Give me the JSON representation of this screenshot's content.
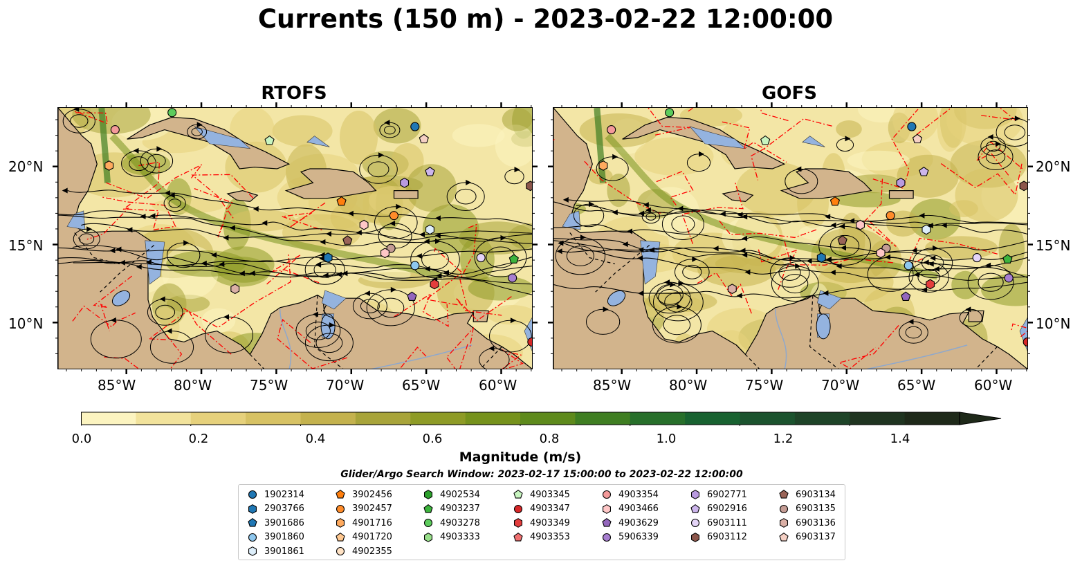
{
  "title": "Currents (150 m) - 2023-02-22 12:00:00",
  "panels": [
    {
      "title": "RTOFS"
    },
    {
      "title": "GOFS"
    }
  ],
  "lon_ticks": [
    "85°W",
    "80°W",
    "75°W",
    "70°W",
    "65°W",
    "60°W"
  ],
  "lat_ticks": [
    "20°N",
    "15°N",
    "10°N"
  ],
  "colorbar": {
    "label": "Magnitude (m/s)",
    "ticks": [
      "0.0",
      "0.2",
      "0.4",
      "0.6",
      "0.8",
      "1.0",
      "1.2",
      "1.4"
    ],
    "range": [
      0,
      1.6
    ],
    "extend": "max",
    "colors": [
      "#fcf4c0",
      "#f2e39c",
      "#e6d17c",
      "#d7c264",
      "#c4b24e",
      "#a8a43a",
      "#8e9b26",
      "#76921c",
      "#5e8a1c",
      "#3f7e22",
      "#276f2a",
      "#186230",
      "#1b532e",
      "#1e4428",
      "#1f3420",
      "#1e2919"
    ]
  },
  "search_window": "Glider/Argo Search Window: 2023-02-17 15:00:00 to 2023-02-22 12:00:00",
  "legend": [
    [
      {
        "label": "1902314",
        "marker": "circle",
        "color": "#1f77b4"
      },
      {
        "label": "2903766",
        "marker": "hexagon",
        "color": "#1f77b4"
      },
      {
        "label": "3901686",
        "marker": "pentagon",
        "color": "#1f77b4"
      },
      {
        "label": "3901860",
        "marker": "circle",
        "color": "#8ec7ee"
      },
      {
        "label": "3901861",
        "marker": "hexagon",
        "color": "#ddeefa"
      }
    ],
    [
      {
        "label": "3902456",
        "marker": "pentagon",
        "color": "#ff7f0e"
      },
      {
        "label": "3902457",
        "marker": "circle",
        "color": "#ff8c2a"
      },
      {
        "label": "4901716",
        "marker": "hexagon",
        "color": "#ffaa5e"
      },
      {
        "label": "4901720",
        "marker": "pentagon",
        "color": "#ffc890"
      },
      {
        "label": "4902355",
        "marker": "circle",
        "color": "#ffe2c4"
      }
    ],
    [
      {
        "label": "4902534",
        "marker": "hexagon",
        "color": "#2ca02c"
      },
      {
        "label": "4903237",
        "marker": "pentagon",
        "color": "#3db43d"
      },
      {
        "label": "4903278",
        "marker": "circle",
        "color": "#5ccc5c"
      },
      {
        "label": "4903333",
        "marker": "hexagon",
        "color": "#98df8a"
      }
    ],
    [
      {
        "label": "4903345",
        "marker": "pentagon",
        "color": "#c8f5c0"
      },
      {
        "label": "4903347",
        "marker": "circle",
        "color": "#d62728"
      },
      {
        "label": "4903349",
        "marker": "hexagon",
        "color": "#e33d3d"
      },
      {
        "label": "4903353",
        "marker": "pentagon",
        "color": "#f07070"
      }
    ],
    [
      {
        "label": "4903354",
        "marker": "circle",
        "color": "#f49a9a"
      },
      {
        "label": "4903466",
        "marker": "hexagon",
        "color": "#ffc7c7"
      },
      {
        "label": "4903629",
        "marker": "pentagon",
        "color": "#9467bd"
      },
      {
        "label": "5906339",
        "marker": "circle",
        "color": "#a77ed0"
      }
    ],
    [
      {
        "label": "6902771",
        "marker": "hexagon",
        "color": "#b99ae0"
      },
      {
        "label": "6902916",
        "marker": "pentagon",
        "color": "#ccb5ec"
      },
      {
        "label": "6903111",
        "marker": "circle",
        "color": "#e4d4f7"
      },
      {
        "label": "6903112",
        "marker": "hexagon",
        "color": "#8c564b"
      }
    ],
    [
      {
        "label": "6903134",
        "marker": "pentagon",
        "color": "#9a6458"
      },
      {
        "label": "6903135",
        "marker": "circle",
        "color": "#c49c94"
      },
      {
        "label": "6903136",
        "marker": "hexagon",
        "color": "#dbb0a6"
      },
      {
        "label": "6903137",
        "marker": "pentagon",
        "color": "#f5d0c4"
      }
    ]
  ],
  "floats": [
    {
      "id": "4903278",
      "lon": -82.0,
      "lat": 23.5
    },
    {
      "id": "4903354",
      "lon": -85.8,
      "lat": 22.4
    },
    {
      "id": "4901716",
      "lon": -86.2,
      "lat": 20.1
    },
    {
      "id": "4903345",
      "lon": -75.5,
      "lat": 21.7
    },
    {
      "id": "1902314",
      "lon": -65.8,
      "lat": 22.6
    },
    {
      "id": "6903137",
      "lon": -65.2,
      "lat": 21.8
    },
    {
      "id": "6902916",
      "lon": -64.8,
      "lat": 19.7
    },
    {
      "id": "6902771",
      "lon": -66.5,
      "lat": 19.0
    },
    {
      "id": "6903112",
      "lon": -58.1,
      "lat": 18.8
    },
    {
      "id": "3902456",
      "lon": -70.7,
      "lat": 17.8
    },
    {
      "id": "3902457",
      "lon": -67.2,
      "lat": 16.9
    },
    {
      "id": "4903466",
      "lon": -69.2,
      "lat": 16.3
    },
    {
      "id": "3901861",
      "lon": -64.8,
      "lat": 16.0
    },
    {
      "id": "6903134",
      "lon": -70.3,
      "lat": 15.3
    },
    {
      "id": "6903135",
      "lon": -67.4,
      "lat": 14.8
    },
    {
      "id": "4903466",
      "lon": -67.8,
      "lat": 14.5
    },
    {
      "id": "2903766",
      "lon": -71.6,
      "lat": 14.2
    },
    {
      "id": "6903111",
      "lon": -61.4,
      "lat": 14.2
    },
    {
      "id": "4903237",
      "lon": -59.2,
      "lat": 14.1
    },
    {
      "id": "3901860",
      "lon": -65.8,
      "lat": 13.7
    },
    {
      "id": "5906339",
      "lon": -59.3,
      "lat": 12.9
    },
    {
      "id": "4903349",
      "lon": -64.5,
      "lat": 12.5
    },
    {
      "id": "6903136",
      "lon": -77.8,
      "lat": 12.2
    },
    {
      "id": "4903629",
      "lon": -66.0,
      "lat": 11.7
    },
    {
      "id": "4903347",
      "lon": -58.0,
      "lat": 8.8
    }
  ]
}
